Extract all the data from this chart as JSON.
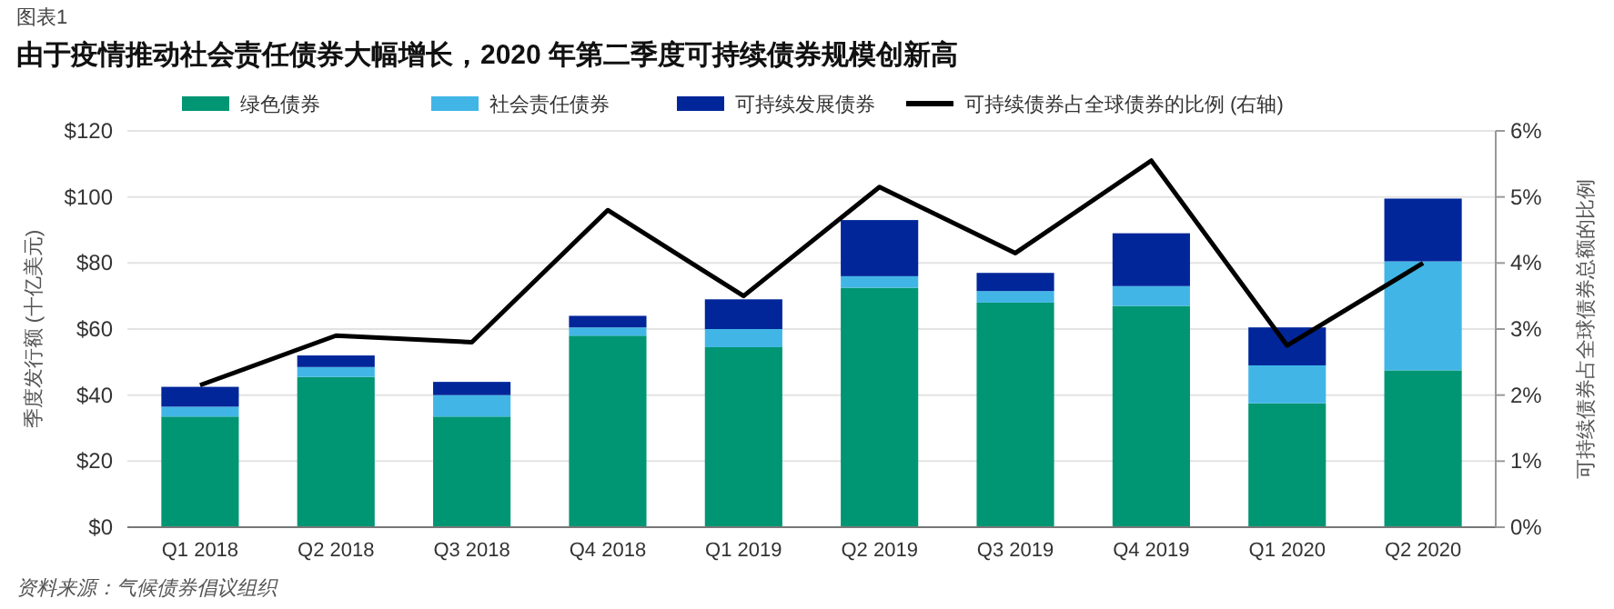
{
  "chart_data": {
    "type": "bar",
    "stacked": true,
    "title": "由于疫情推动社会责任债券大幅增长，2020 年第二季度可持续债券规模创新高",
    "categories": [
      "Q1 2018",
      "Q2 2018",
      "Q3 2018",
      "Q4 2018",
      "Q1 2019",
      "Q2 2019",
      "Q3 2019",
      "Q4 2019",
      "Q1 2020",
      "Q2 2020"
    ],
    "series": [
      {
        "name": "绿色债券",
        "color": "#009673",
        "values": [
          33.5,
          45.5,
          33.5,
          58,
          54.5,
          72.5,
          68,
          67,
          37.5,
          47.5
        ]
      },
      {
        "name": "社会责任债券",
        "color": "#41b6e6",
        "values": [
          3,
          3,
          6.5,
          2.5,
          5.5,
          3.5,
          3.5,
          6,
          11.5,
          33
        ]
      },
      {
        "name": "可持续发展债券",
        "color": "#00269a",
        "values": [
          6,
          3.5,
          4,
          3.5,
          9,
          17,
          5.5,
          16,
          11.5,
          19
        ]
      },
      {
        "name": "可持续债券占全球债券的比例 (右轴)",
        "type": "line",
        "axis": "y2",
        "color": "#000000",
        "values": [
          2.15,
          2.9,
          2.8,
          4.8,
          3.5,
          5.15,
          4.15,
          5.55,
          2.75,
          4.0
        ]
      }
    ],
    "ylabel": "季度发行额 (十亿美元)",
    "y2label": "可持续债券占全球债券总额的比例",
    "ylim": [
      0,
      120
    ],
    "yticks": [
      {
        "value": 0,
        "label": "$0"
      },
      {
        "value": 20,
        "label": "$20"
      },
      {
        "value": 40,
        "label": "$40"
      },
      {
        "value": 60,
        "label": "$60"
      },
      {
        "value": 80,
        "label": "$80"
      },
      {
        "value": 100,
        "label": "$100"
      },
      {
        "value": 120,
        "label": "$120"
      }
    ],
    "y2lim": [
      0,
      6
    ],
    "y2ticks": [
      {
        "value": 0,
        "label": "0%"
      },
      {
        "value": 1,
        "label": "1%"
      },
      {
        "value": 2,
        "label": "2%"
      },
      {
        "value": 3,
        "label": "3%"
      },
      {
        "value": 4,
        "label": "4%"
      },
      {
        "value": 5,
        "label": "5%"
      },
      {
        "value": 6,
        "label": "6%"
      }
    ],
    "grid": "y",
    "legend": "top",
    "marker": "none",
    "line_style": "solid",
    "annotations": [
      "图表1",
      "资料来源：气候债券倡议组织"
    ]
  }
}
